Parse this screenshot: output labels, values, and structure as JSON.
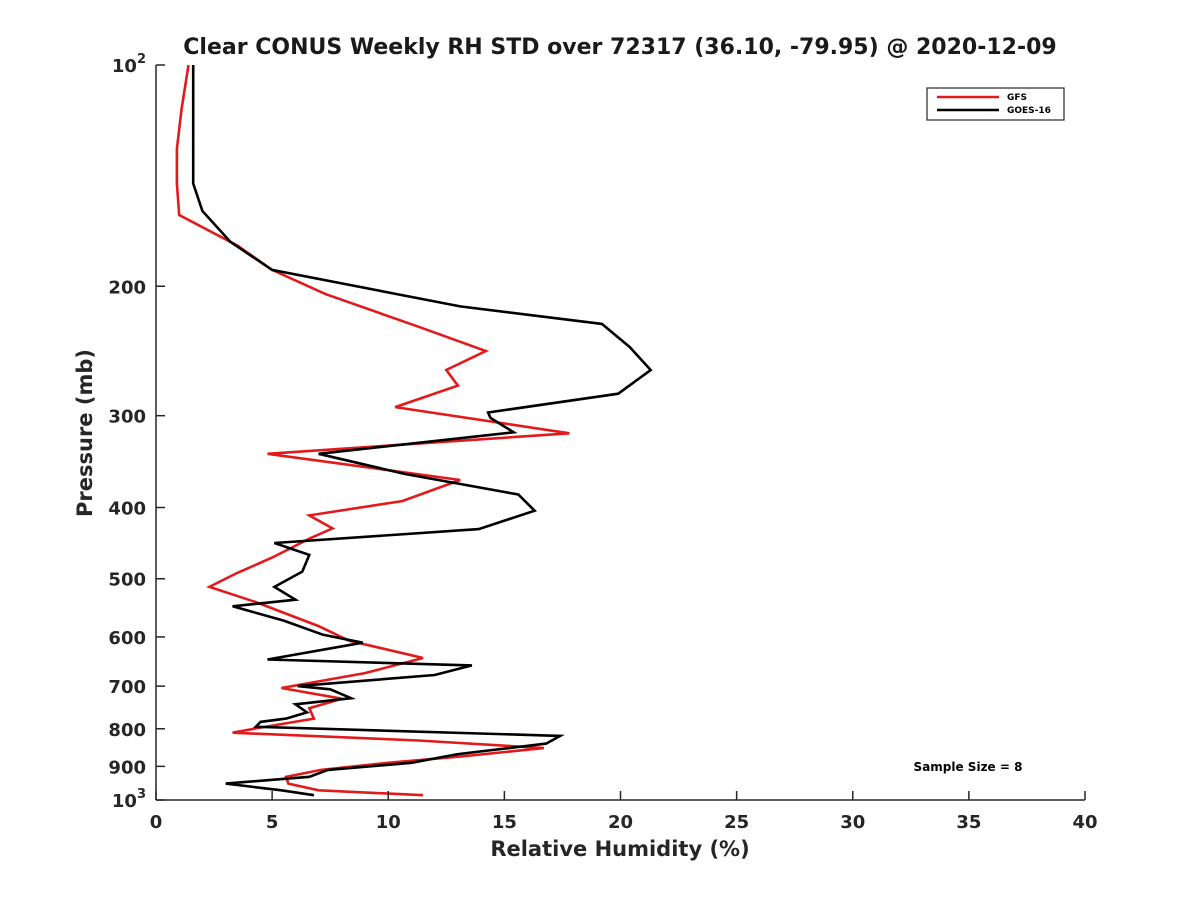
{
  "chart_data": {
    "type": "line",
    "title": "Clear CONUS Weekly RH STD over 72317 (36.10, -79.95) @ 2020-12-09",
    "xlabel": "Relative Humidity (%)",
    "ylabel": "Pressure (mb)",
    "xlim": [
      0,
      40
    ],
    "ylim": [
      100,
      1000
    ],
    "yscale": "log",
    "y_reversed": true,
    "x_ticks": [
      "0",
      "5",
      "10",
      "15",
      "20",
      "25",
      "30",
      "35",
      "40"
    ],
    "y_ticks": [
      {
        "value": 100,
        "base": "10",
        "exp": "2"
      },
      {
        "value": 200,
        "label": "200"
      },
      {
        "value": 300,
        "label": "300"
      },
      {
        "value": 400,
        "label": "400"
      },
      {
        "value": 500,
        "label": "500"
      },
      {
        "value": 600,
        "label": "600"
      },
      {
        "value": 700,
        "label": "700"
      },
      {
        "value": 800,
        "label": "800"
      },
      {
        "value": 900,
        "label": "900"
      },
      {
        "value": 1000,
        "base": "10",
        "exp": "3"
      }
    ],
    "grid": false,
    "legend_position": "top-right",
    "annotation": "Sample Size = 8",
    "series": [
      {
        "name": "GFS",
        "color": "#e31a1c",
        "x": [
          1.4,
          1.1,
          0.9,
          0.9,
          1.0,
          3.5,
          5.0,
          7.3,
          11.3,
          14.2,
          12.5,
          13.0,
          10.3,
          17.8,
          4.8,
          13.1,
          10.6,
          6.6,
          7.6,
          6.6,
          5.0,
          3.5,
          2.3,
          4.3,
          7.0,
          8.3,
          11.5,
          9.0,
          5.4,
          8.0,
          6.6,
          6.8,
          4.3,
          3.3,
          11.3,
          16.7,
          13.2,
          10.0,
          7.1,
          5.6,
          5.7,
          7.0,
          11.5
        ],
        "y": [
          100,
          115,
          130,
          145,
          160,
          176,
          190,
          205,
          227,
          245,
          260,
          273,
          292,
          317,
          338,
          367,
          392,
          410,
          427,
          441,
          468,
          491,
          513,
          538,
          580,
          607,
          641,
          672,
          704,
          728,
          750,
          775,
          799,
          810,
          830,
          850,
          872,
          890,
          910,
          930,
          950,
          970,
          985
        ]
      },
      {
        "name": "GOES-16",
        "color": "#000000",
        "x": [
          1.6,
          1.6,
          1.6,
          1.6,
          2.0,
          3.2,
          5.0,
          13.1,
          19.2,
          20.4,
          21.3,
          19.9,
          14.3,
          14.4,
          15.4,
          7.0,
          10.7,
          15.6,
          16.3,
          13.9,
          5.1,
          6.6,
          6.3,
          5.1,
          6.0,
          3.3,
          5.5,
          7.2,
          8.9,
          4.8,
          13.6,
          12.0,
          6.1,
          7.5,
          8.4,
          6.0,
          6.5,
          5.6,
          4.5,
          4.3,
          17.4,
          16.8,
          13.0,
          11.0,
          7.4,
          6.6,
          3.0,
          5.4,
          6.8
        ],
        "y": [
          100,
          115,
          130,
          145,
          158,
          174,
          190,
          213,
          225,
          242,
          260,
          280,
          297,
          302,
          316,
          338,
          360,
          384,
          404,
          428,
          447,
          464,
          489,
          513,
          534,
          545,
          570,
          596,
          611,
          644,
          656,
          676,
          700,
          707,
          727,
          741,
          760,
          775,
          783,
          795,
          818,
          838,
          866,
          890,
          910,
          930,
          950,
          970,
          985
        ]
      }
    ]
  }
}
